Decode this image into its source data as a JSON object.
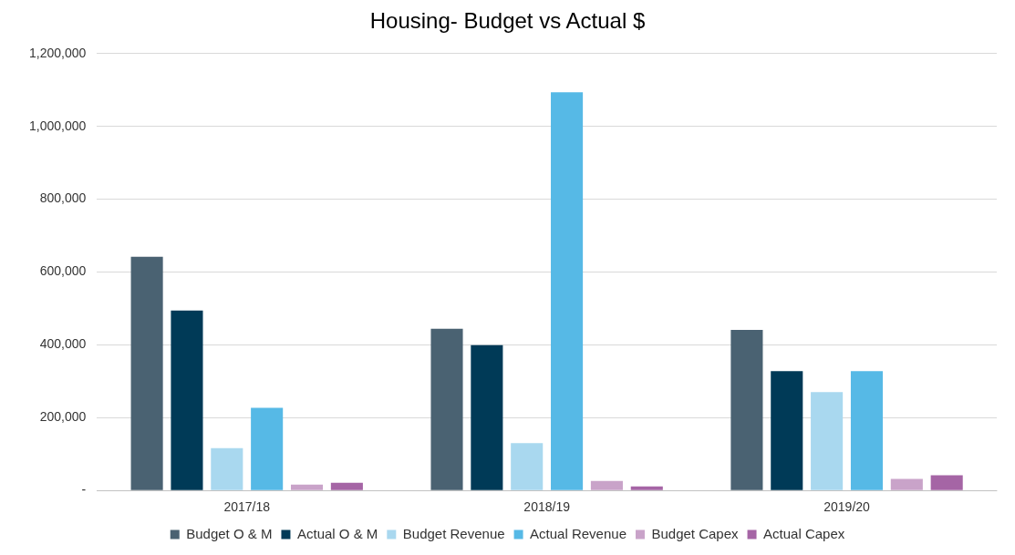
{
  "chart_data": {
    "type": "bar",
    "title": "Housing- Budget vs Actual $",
    "categories": [
      "2017/18",
      "2018/19",
      "2019/20"
    ],
    "series": [
      {
        "name": "Budget O & M",
        "color": "#4a6272",
        "values": [
          642000,
          444000,
          441000
        ]
      },
      {
        "name": "Actual O & M",
        "color": "#003a57",
        "values": [
          494000,
          399000,
          328000
        ]
      },
      {
        "name": "Budget Revenue",
        "color": "#a9d8ef",
        "values": [
          116000,
          130000,
          270000
        ]
      },
      {
        "name": "Actual Revenue",
        "color": "#56b9e6",
        "values": [
          227000,
          1094000,
          328000
        ]
      },
      {
        "name": "Budget Capex",
        "color": "#c9a3c9",
        "values": [
          16000,
          26000,
          32000
        ]
      },
      {
        "name": "Actual Capex",
        "color": "#a565a5",
        "values": [
          21000,
          11000,
          42000
        ]
      }
    ],
    "ylim": [
      0,
      1200000
    ],
    "yticks": [
      {
        "value": 0,
        "label": "-"
      },
      {
        "value": 200000,
        "label": "200,000"
      },
      {
        "value": 400000,
        "label": "400,000"
      },
      {
        "value": 600000,
        "label": "600,000"
      },
      {
        "value": 800000,
        "label": "800,000"
      },
      {
        "value": 1000000,
        "label": "1,000,000"
      },
      {
        "value": 1200000,
        "label": "1,200,000"
      }
    ],
    "grid": "y",
    "legend": "bottom"
  }
}
